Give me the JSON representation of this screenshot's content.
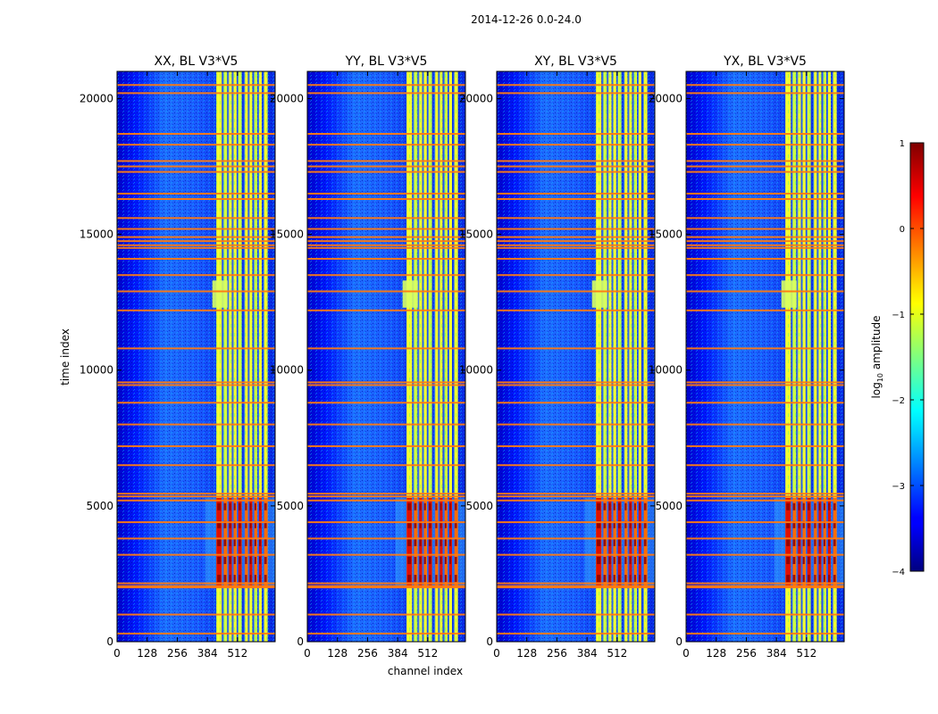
{
  "chart_data": {
    "type": "heatmap",
    "suptitle": "2014-12-26 0.0-24.0",
    "xlabel": "channel index",
    "ylabel": "time index",
    "xlim": [
      0,
      672
    ],
    "ylim": [
      0,
      21000
    ],
    "x_ticks": [
      0,
      128,
      256,
      384,
      512
    ],
    "y_ticks": [
      0,
      5000,
      10000,
      15000,
      20000
    ],
    "panels": [
      {
        "title": "XX, BL V3*V5"
      },
      {
        "title": "YY, BL V3*V5"
      },
      {
        "title": "XY, BL V3*V5"
      },
      {
        "title": "YX, BL V3*V5"
      }
    ],
    "colorbar": {
      "label_base": "log",
      "label_sub": "10",
      "label_rest": " amplitude",
      "min": -4,
      "max": 1,
      "ticks": [
        1,
        0,
        -1,
        -2,
        -3,
        -4
      ],
      "tick_labels": [
        "1",
        "0",
        "−1",
        "−2",
        "−3",
        "−4"
      ]
    },
    "features": {
      "band_channels": [
        [
          422,
          445
        ],
        [
          450,
          468
        ],
        [
          472,
          488
        ],
        [
          492,
          508
        ],
        [
          512,
          530
        ],
        [
          540,
          556
        ],
        [
          560,
          575
        ],
        [
          580,
          596
        ],
        [
          600,
          615
        ],
        [
          622,
          640
        ]
      ],
      "flag_rows": [
        300,
        1000,
        2000,
        2050,
        2150,
        3200,
        3800,
        4400,
        5200,
        5350,
        5450,
        6500,
        7200,
        8000,
        8800,
        9450,
        9550,
        10800,
        12200,
        12900,
        13500,
        14100,
        14500,
        14600,
        14750,
        14900,
        15200,
        15600,
        16300,
        16500,
        17300,
        17500,
        17700,
        18300,
        18700,
        20200,
        20500
      ],
      "bright_time_range": [
        2000,
        5300
      ],
      "bright_channel_range": [
        420,
        640
      ]
    }
  }
}
